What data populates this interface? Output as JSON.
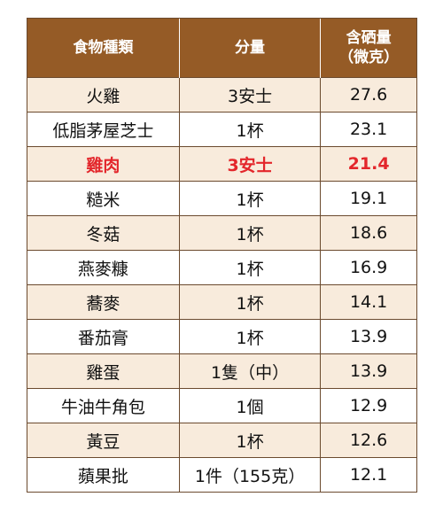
{
  "headers": {
    "food": "食物種類",
    "portion": "分量",
    "selenium_line1": "含硒量",
    "selenium_line2": "（微克）"
  },
  "rows": [
    {
      "food": "火雞",
      "portion": "3安士",
      "selenium": "27.6",
      "shaded": true,
      "highlight": false
    },
    {
      "food": "低脂茅屋芝士",
      "portion": "1杯",
      "selenium": "23.1",
      "shaded": false,
      "highlight": false
    },
    {
      "food": "雞肉",
      "portion": "3安士",
      "selenium": "21.4",
      "shaded": true,
      "highlight": true
    },
    {
      "food": "糙米",
      "portion": "1杯",
      "selenium": "19.1",
      "shaded": false,
      "highlight": false
    },
    {
      "food": "冬菇",
      "portion": "1杯",
      "selenium": "18.6",
      "shaded": true,
      "highlight": false
    },
    {
      "food": "燕麥糠",
      "portion": "1杯",
      "selenium": "16.9",
      "shaded": false,
      "highlight": false
    },
    {
      "food": "蕎麥",
      "portion": "1杯",
      "selenium": "14.1",
      "shaded": true,
      "highlight": false
    },
    {
      "food": "番茄膏",
      "portion": "1杯",
      "selenium": "13.9",
      "shaded": false,
      "highlight": false
    },
    {
      "food": "雞蛋",
      "portion": "1隻（中）",
      "selenium": "13.9",
      "shaded": true,
      "highlight": false
    },
    {
      "food": "牛油牛角包",
      "portion": "1個",
      "selenium": "12.9",
      "shaded": false,
      "highlight": false
    },
    {
      "food": "黃豆",
      "portion": "1杯",
      "selenium": "12.6",
      "shaded": true,
      "highlight": false
    },
    {
      "food": "蘋果批",
      "portion": "1件（155克）",
      "selenium": "12.1",
      "shaded": false,
      "highlight": false
    }
  ],
  "colors": {
    "header_bg": "#955b26",
    "shaded_row_bg": "#f8ebdc",
    "highlight_text": "#e3262b",
    "border": "#6b4a2e"
  }
}
